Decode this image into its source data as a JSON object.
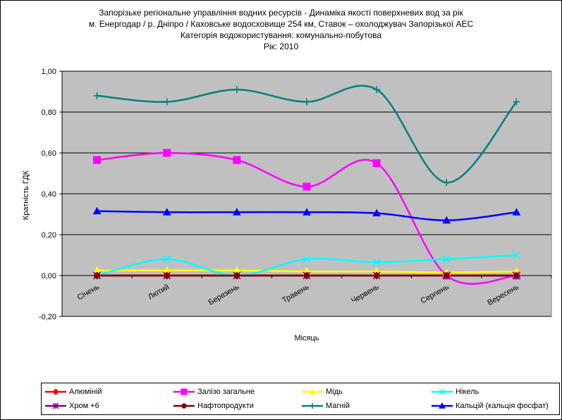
{
  "chart_data": {
    "type": "line",
    "title_lines": [
      "Запорізьке регіональне управління водних ресурсів - Динаміка якості поверхневих вод за рік",
      "м. Енергодар / р. Дніпро / Каховське водосховище 254 км, Ставок – охолоджувач Запорізької АЕС",
      "Категорія водокористування: комунально-побутова",
      "Рік: 2010"
    ],
    "xlabel": "Місяць",
    "ylabel": "Кратність ГДК",
    "categories": [
      "Січень",
      "Лютий",
      "Березень",
      "Травень",
      "Червень",
      "Серпень",
      "Вересень"
    ],
    "ylim": [
      -0.2,
      1.0
    ],
    "yticks": [
      "-0,20",
      "0,00",
      "0,20",
      "0,40",
      "0,60",
      "0,80",
      "1,00"
    ],
    "ytick_values": [
      -0.2,
      0.0,
      0.2,
      0.4,
      0.6,
      0.8,
      1.0
    ],
    "grid": true,
    "smooth": true,
    "plot_background": "#c0c0c0",
    "series": [
      {
        "name": "Алюміній",
        "color": "#ff0000",
        "marker": "diamond",
        "values": [
          0,
          0,
          0,
          0,
          0,
          0,
          0
        ]
      },
      {
        "name": "Залізо загальне",
        "color": "#ff00ff",
        "marker": "square",
        "values": [
          0.565,
          0.6,
          0.565,
          0.435,
          0.55,
          0,
          0
        ]
      },
      {
        "name": "Мідь",
        "color": "#ffff00",
        "marker": "triangle",
        "values": [
          0.025,
          0.025,
          0.025,
          0.02,
          0.02,
          0.015,
          0.02
        ]
      },
      {
        "name": "Нікель",
        "color": "#00ffff",
        "marker": "x",
        "values": [
          0.0,
          0.08,
          0.0,
          0.08,
          0.065,
          0.08,
          0.1
        ]
      },
      {
        "name": "Хром +6",
        "color": "#800080",
        "marker": "star",
        "values": [
          0,
          0,
          0,
          0,
          0,
          0,
          0
        ]
      },
      {
        "name": "Нафтопродукти",
        "color": "#800000",
        "marker": "circle",
        "values": [
          0,
          0,
          0,
          0,
          0,
          0,
          0
        ]
      },
      {
        "name": "Магній",
        "color": "#008080",
        "marker": "plus",
        "values": [
          0.88,
          0.85,
          0.91,
          0.85,
          0.91,
          0.455,
          0.85
        ]
      },
      {
        "name": "Кальцій (кальція фосфат)",
        "color": "#0000ff",
        "marker": "triangle",
        "values": [
          0.315,
          0.31,
          0.31,
          0.31,
          0.305,
          0.27,
          0.31
        ]
      }
    ],
    "legend_position": "bottom"
  }
}
